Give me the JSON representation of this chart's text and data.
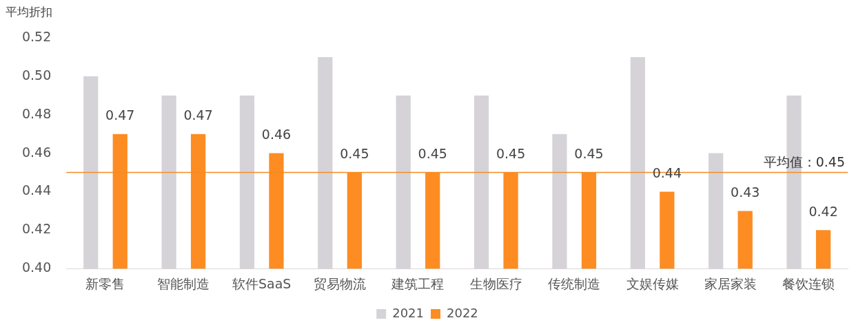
{
  "chart_data": {
    "type": "bar",
    "ylabel": "平均折扣",
    "categories": [
      "新零售",
      "智能制造",
      "软件SaaS",
      "贸易物流",
      "建筑工程",
      "生物医疗",
      "传统制造",
      "文娱传媒",
      "家居家装",
      "餐饮连锁"
    ],
    "series": [
      {
        "name": "2021",
        "color": "#d5d3d8",
        "values": [
          0.5,
          0.49,
          0.49,
          0.51,
          0.49,
          0.49,
          0.47,
          0.51,
          0.46,
          0.49
        ]
      },
      {
        "name": "2022",
        "color": "#fd8c22",
        "values": [
          0.47,
          0.47,
          0.46,
          0.45,
          0.45,
          0.45,
          0.45,
          0.44,
          0.43,
          0.42
        ],
        "value_labels": [
          "0.47",
          "0.47",
          "0.46",
          "0.45",
          "0.45",
          "0.45",
          "0.45",
          "0.44",
          "0.43",
          "0.42"
        ]
      }
    ],
    "ylim": [
      0.4,
      0.52
    ],
    "yticks": [
      {
        "value": 0.4,
        "label": "0.40"
      },
      {
        "value": 0.42,
        "label": "0.42"
      },
      {
        "value": 0.44,
        "label": "0.44"
      },
      {
        "value": 0.46,
        "label": "0.46"
      },
      {
        "value": 0.48,
        "label": "0.48"
      },
      {
        "value": 0.5,
        "label": "0.50"
      },
      {
        "value": 0.52,
        "label": "0.52"
      }
    ],
    "ref_lines": [
      {
        "axis": "y",
        "value": 0.45,
        "label": "平均值：0.45",
        "color": "#f58a1f"
      }
    ],
    "grid": false,
    "legend": "bottom"
  }
}
